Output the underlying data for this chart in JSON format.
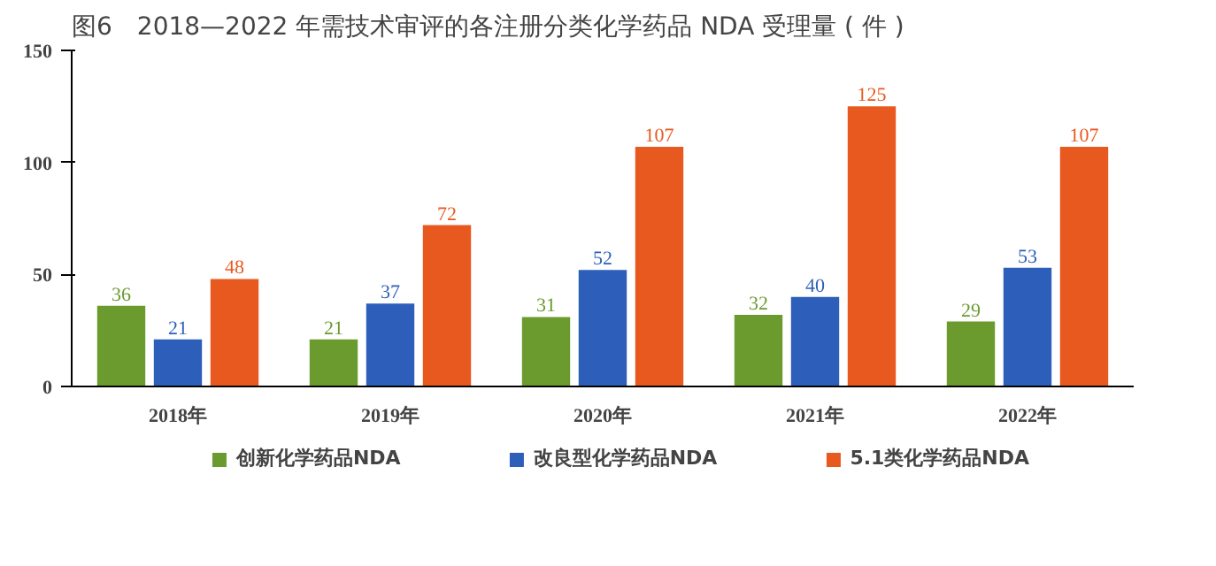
{
  "chart_data": {
    "type": "bar",
    "title": "图6　2018—2022 年需技术审评的各注册分类化学药品 NDA 受理量 ( 件 )",
    "categories": [
      "2018年",
      "2019年",
      "2020年",
      "2021年",
      "2022年"
    ],
    "series": [
      {
        "name": "创新化学药品NDA",
        "color": "#6b9a2f",
        "values": [
          36,
          21,
          31,
          32,
          29
        ]
      },
      {
        "name": "改良型化学药品NDA",
        "color": "#2d5fba",
        "values": [
          21,
          37,
          52,
          40,
          53
        ]
      },
      {
        "name": "5.1类化学药品NDA",
        "color": "#e8591f",
        "values": [
          48,
          72,
          107,
          125,
          107
        ]
      }
    ],
    "ylim": [
      0,
      150
    ],
    "yticks": [
      0,
      50,
      100,
      150
    ],
    "grid": false,
    "legend": "bottom",
    "data_labels": true
  }
}
